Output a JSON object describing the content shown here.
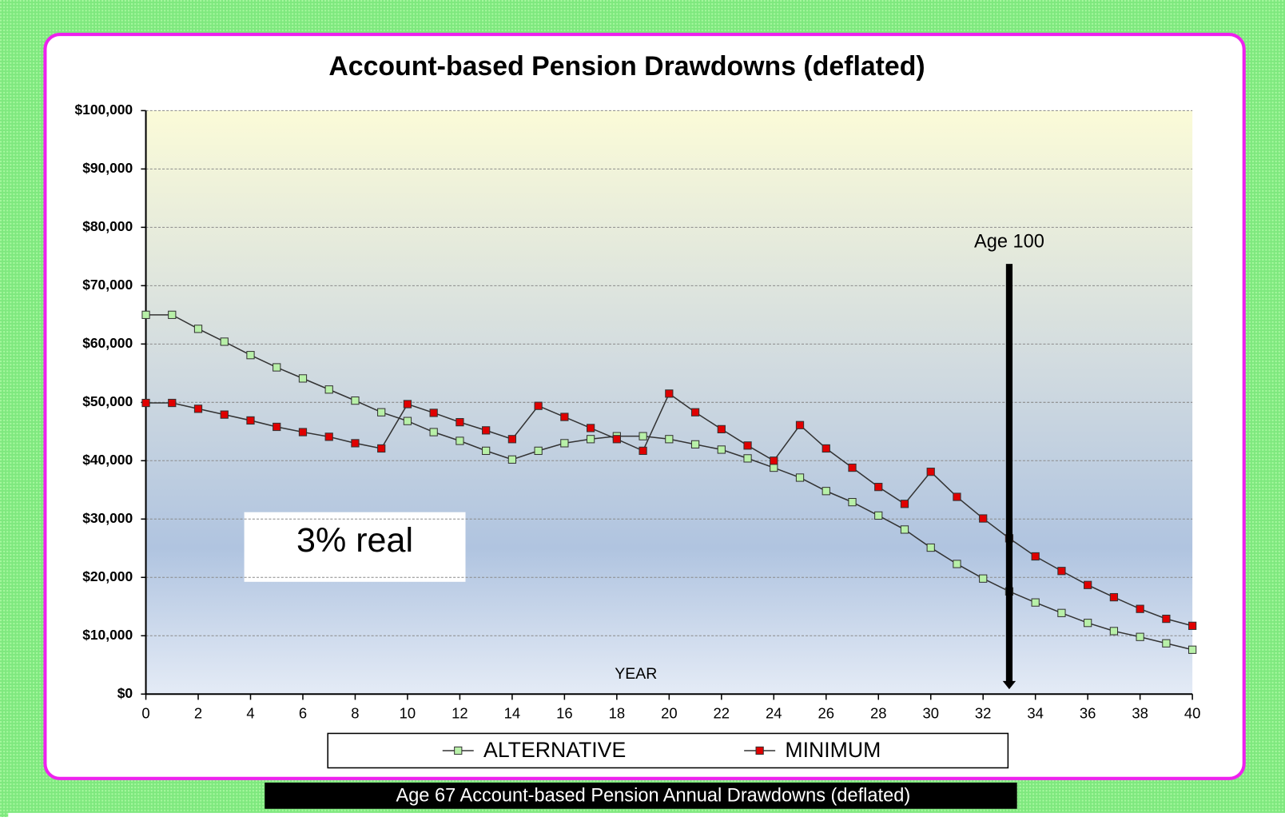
{
  "chart_data": {
    "type": "line",
    "title": "Account-based Pension Drawdowns (deflated)",
    "caption": "Age 67  Account-based Pension Annual Drawdowns (deflated)",
    "x_label": "YEAR",
    "x": [
      0,
      1,
      2,
      3,
      4,
      5,
      6,
      7,
      8,
      9,
      10,
      11,
      12,
      13,
      14,
      15,
      16,
      17,
      18,
      19,
      20,
      21,
      22,
      23,
      24,
      25,
      26,
      27,
      28,
      29,
      30,
      31,
      32,
      33,
      34,
      35,
      36,
      37,
      38,
      39,
      40
    ],
    "series": [
      {
        "name": "ALTERNATIVE",
        "color": "#b8f0a8",
        "values": [
          65000,
          65000,
          62600,
          60400,
          58100,
          56000,
          54100,
          52200,
          50300,
          48300,
          46800,
          44900,
          43400,
          41700,
          40200,
          41700,
          43000,
          43700,
          44200,
          44200,
          43700,
          42800,
          41900,
          40400,
          38800,
          37100,
          34800,
          32900,
          30600,
          28200,
          25100,
          22300,
          19800,
          17600,
          15700,
          13900,
          12200,
          10800,
          9800,
          8700,
          7600
        ]
      },
      {
        "name": "MINIMUM",
        "color": "#e00000",
        "values": [
          49900,
          49900,
          48900,
          47900,
          46900,
          45800,
          44900,
          44100,
          43000,
          42100,
          49700,
          48200,
          46600,
          45200,
          43700,
          49400,
          47500,
          45600,
          43700,
          41700,
          51500,
          48300,
          45400,
          42600,
          40000,
          46100,
          42100,
          38800,
          35500,
          32600,
          38100,
          33800,
          30100,
          26700,
          23600,
          21100,
          18700,
          16600,
          14600,
          12900,
          11700
        ]
      }
    ],
    "xlim": [
      0,
      40
    ],
    "xticks": [
      0,
      2,
      4,
      6,
      8,
      10,
      12,
      14,
      16,
      18,
      20,
      22,
      24,
      26,
      28,
      30,
      32,
      34,
      36,
      38,
      40
    ],
    "ylim": [
      0,
      100000
    ],
    "yticks": [
      {
        "value": 0,
        "label": "$0"
      },
      {
        "value": 10000,
        "label": "$10,000"
      },
      {
        "value": 20000,
        "label": "$20,000"
      },
      {
        "value": 30000,
        "label": "$30,000"
      },
      {
        "value": 40000,
        "label": "$40,000"
      },
      {
        "value": 50000,
        "label": "$50,000"
      },
      {
        "value": 60000,
        "label": "$60,000"
      },
      {
        "value": 70000,
        "label": "$70,000"
      },
      {
        "value": 80000,
        "label": "$80,000"
      },
      {
        "value": 90000,
        "label": "$90,000"
      },
      {
        "value": 100000,
        "label": "$100,000"
      }
    ],
    "grid": true,
    "legend": "bottom",
    "annotations": [
      {
        "text": "Age 100",
        "x": 33
      },
      {
        "text": "3% real"
      }
    ]
  }
}
